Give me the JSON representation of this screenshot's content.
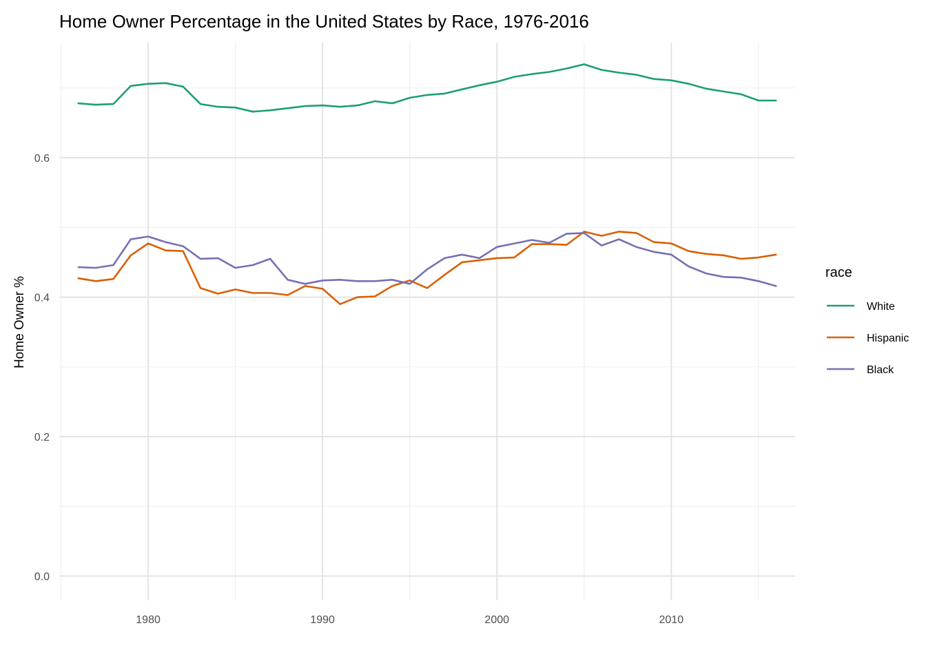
{
  "chart_data": {
    "type": "line",
    "title": "Home Owner Percentage in the United States by Race, 1976-2016",
    "xlabel": "",
    "ylabel": "Home Owner %",
    "xlim": [
      1974.9,
      2017.1
    ],
    "ylim": [
      -0.035,
      0.765
    ],
    "x_ticks": [
      1980,
      1990,
      2000,
      2010
    ],
    "x_tick_labels": [
      "1980",
      "1990",
      "2000",
      "2010"
    ],
    "x_minor_ticks": [
      1975,
      1985,
      1995,
      2005,
      2015
    ],
    "y_ticks": [
      0.0,
      0.2,
      0.4,
      0.6
    ],
    "y_tick_labels": [
      "0.0",
      "0.2",
      "0.4",
      "0.6"
    ],
    "y_minor_ticks": [
      0.1,
      0.3,
      0.5,
      0.7
    ],
    "grid": true,
    "legend": {
      "title": "race",
      "position": "right"
    },
    "x": [
      1976,
      1977,
      1978,
      1979,
      1980,
      1981,
      1982,
      1983,
      1984,
      1985,
      1986,
      1987,
      1988,
      1989,
      1990,
      1991,
      1992,
      1993,
      1994,
      1995,
      1996,
      1997,
      1998,
      1999,
      2000,
      2001,
      2002,
      2003,
      2004,
      2005,
      2006,
      2007,
      2008,
      2009,
      2010,
      2011,
      2012,
      2013,
      2014,
      2015,
      2016
    ],
    "series": [
      {
        "name": "White",
        "color": "#1b9e77",
        "values": [
          0.678,
          0.676,
          0.677,
          0.703,
          0.706,
          0.707,
          0.702,
          0.677,
          0.673,
          0.672,
          0.666,
          0.668,
          0.671,
          0.674,
          0.675,
          0.673,
          0.675,
          0.681,
          0.678,
          0.686,
          0.69,
          0.692,
          0.698,
          0.704,
          0.709,
          0.716,
          0.72,
          0.723,
          0.728,
          0.734,
          0.726,
          0.722,
          0.719,
          0.713,
          0.711,
          0.706,
          0.699,
          0.695,
          0.691,
          0.682,
          0.682
        ]
      },
      {
        "name": "Hispanic",
        "color": "#d95f02",
        "values": [
          0.427,
          0.423,
          0.426,
          0.46,
          0.477,
          0.467,
          0.466,
          0.413,
          0.405,
          0.411,
          0.406,
          0.406,
          0.403,
          0.416,
          0.412,
          0.39,
          0.4,
          0.401,
          0.416,
          0.424,
          0.413,
          0.432,
          0.45,
          0.453,
          0.456,
          0.457,
          0.476,
          0.476,
          0.475,
          0.494,
          0.488,
          0.494,
          0.492,
          0.479,
          0.477,
          0.466,
          0.462,
          0.46,
          0.455,
          0.457,
          0.461
        ]
      },
      {
        "name": "Black",
        "color": "#7570b3",
        "values": [
          0.443,
          0.442,
          0.446,
          0.483,
          0.487,
          0.479,
          0.473,
          0.455,
          0.456,
          0.442,
          0.446,
          0.455,
          0.425,
          0.419,
          0.424,
          0.425,
          0.423,
          0.423,
          0.425,
          0.419,
          0.44,
          0.456,
          0.461,
          0.456,
          0.472,
          0.477,
          0.482,
          0.478,
          0.491,
          0.492,
          0.474,
          0.483,
          0.472,
          0.465,
          0.461,
          0.444,
          0.434,
          0.429,
          0.428,
          0.423,
          0.416
        ]
      }
    ]
  }
}
